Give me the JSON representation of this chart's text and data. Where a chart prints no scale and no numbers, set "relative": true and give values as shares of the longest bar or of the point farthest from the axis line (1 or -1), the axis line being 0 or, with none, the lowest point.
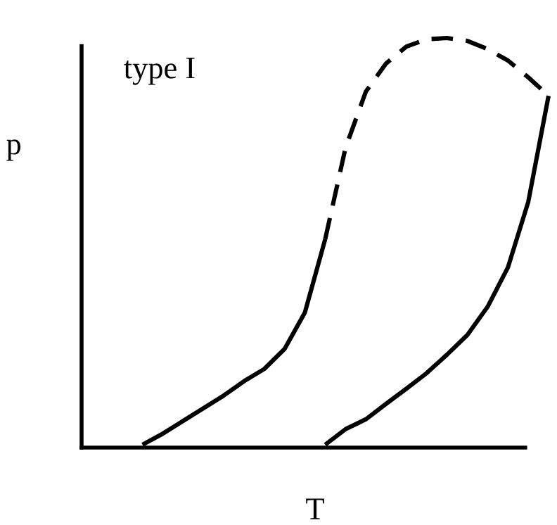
{
  "chart_data": {
    "type": "line",
    "relative": true,
    "xlabel": "T",
    "ylabel": "p",
    "annotations": [
      "type I"
    ],
    "categories": [
      null,
      null,
      null,
      null,
      null,
      null,
      null,
      null,
      null,
      null,
      null,
      null,
      null,
      null,
      null,
      null,
      null,
      null,
      null,
      null,
      null,
      null,
      null,
      null
    ],
    "series": [
      {
        "color": "#000000",
        "line_style": "solid",
        "values": [
          null,
          null,
          null,
          0.007,
          0.034,
          0.065,
          0.096,
          0.127,
          0.162,
          0.192,
          0.241,
          0.33,
          0.509,
          null,
          null,
          null,
          null,
          null,
          null,
          null,
          null,
          null,
          null,
          null
        ]
      },
      {
        "color": "#000000",
        "line_style": "dashed",
        "values": [
          null,
          null,
          null,
          null,
          null,
          null,
          null,
          null,
          null,
          null,
          null,
          null,
          0.509,
          0.732,
          0.869,
          0.938,
          0.979,
          0.997,
          1.0,
          0.993,
          0.973,
          0.945,
          0.904,
          0.859
        ]
      },
      {
        "color": "#000000",
        "line_style": "solid",
        "values": [
          null,
          null,
          null,
          null,
          null,
          null,
          null,
          null,
          null,
          null,
          null,
          null,
          0.007,
          0.045,
          0.069,
          0.107,
          0.144,
          0.182,
          0.227,
          0.275,
          0.344,
          0.44,
          0.6,
          0.859
        ]
      }
    ],
    "marker": "none"
  }
}
